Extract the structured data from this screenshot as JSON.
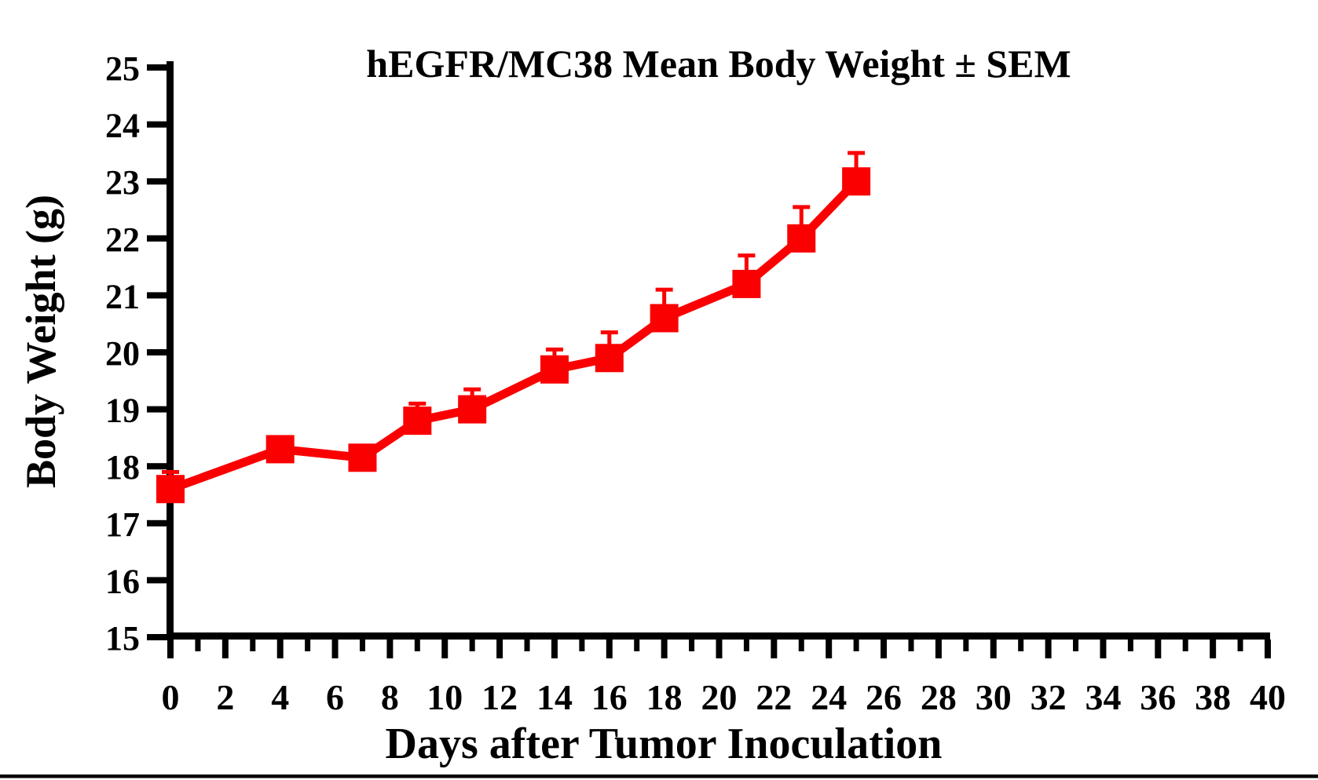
{
  "chart": {
    "title": "hEGFR/MC38 Mean Body Weight ± SEM",
    "x_axis_title": "Days after Tumor Inoculation",
    "y_axis_title": "Body Weight (g)"
  },
  "chart_data": {
    "type": "line",
    "title": "hEGFR/MC38 Mean Body Weight ± SEM",
    "xlabel": "Days after Tumor Inoculation",
    "ylabel": "Body Weight (g)",
    "xlim": [
      0,
      40
    ],
    "ylim": [
      15,
      25
    ],
    "grid": false,
    "legend": false,
    "x_major_tick_step": 2,
    "x_minor_tick_step": 1,
    "y_tick_step": 1,
    "x_tick_labels": [
      "0",
      "2",
      "4",
      "6",
      "8",
      "10",
      "12",
      "14",
      "16",
      "18",
      "20",
      "22",
      "24",
      "26",
      "28",
      "30",
      "32",
      "34",
      "36",
      "38",
      "40"
    ],
    "y_tick_labels": [
      "15",
      "16",
      "17",
      "18",
      "19",
      "20",
      "21",
      "22",
      "23",
      "24",
      "25"
    ],
    "error_bars": "SEM, upper side only",
    "series": [
      {
        "name": "hEGFR/MC38",
        "marker": "square",
        "color": "#fa0000",
        "x": [
          0,
          4,
          7,
          9,
          11,
          14,
          16,
          18,
          21,
          23,
          25
        ],
        "y": [
          17.6,
          18.3,
          18.15,
          18.8,
          19.0,
          19.7,
          19.9,
          20.6,
          21.2,
          22.0,
          23.0
        ],
        "sem_upper": [
          0.3,
          0,
          0,
          0.3,
          0.35,
          0.35,
          0.45,
          0.5,
          0.5,
          0.55,
          0.5
        ]
      }
    ],
    "colors": {
      "series": "#fa0000",
      "axis": "#000000",
      "background": "#ffffff"
    }
  }
}
